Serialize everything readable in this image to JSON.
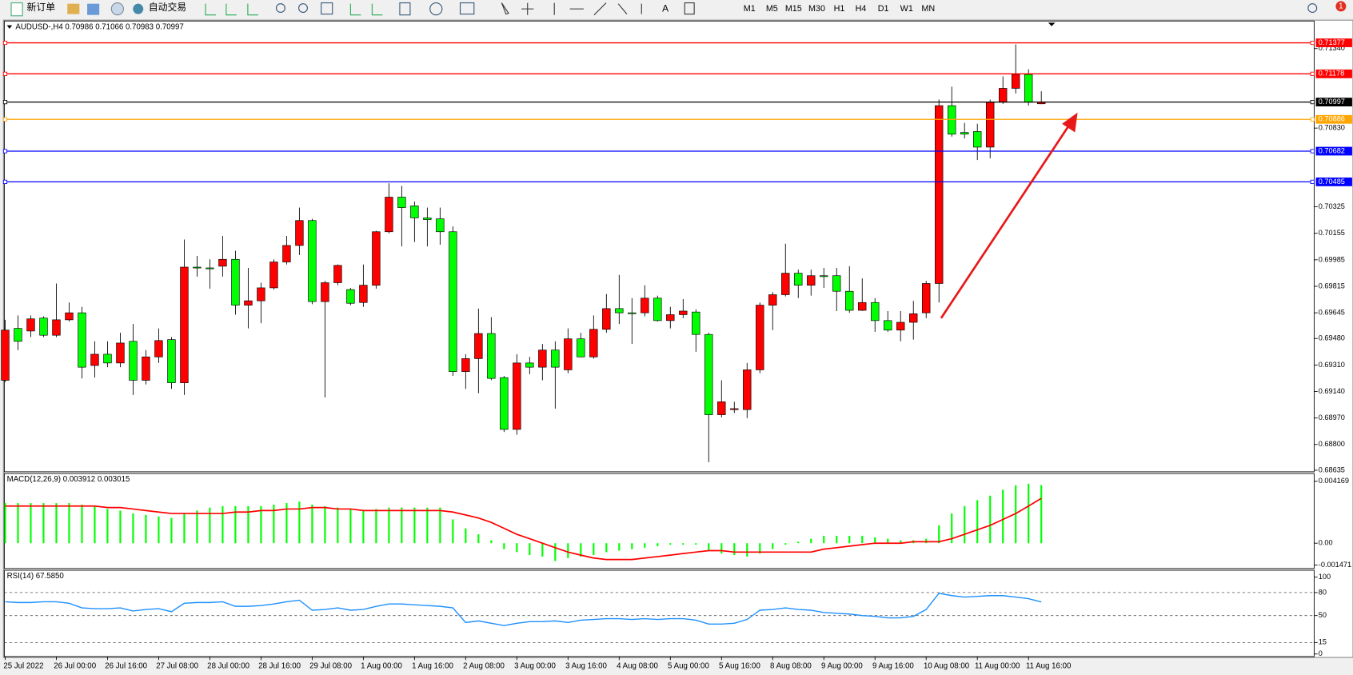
{
  "toolbar": {
    "new_order": "新订单",
    "auto_trading": "自动交易",
    "timeframes": [
      "M1",
      "M5",
      "M15",
      "M30",
      "H1",
      "H4",
      "D1",
      "W1",
      "MN"
    ],
    "badge": "1"
  },
  "chart_data": [
    {
      "type": "candlestick",
      "title": "AUDUSD-,H4  0.70986 0.71066 0.70983 0.70997",
      "categories": [
        "25 Jul 2022",
        null,
        null,
        null,
        "26 Jul 00:00",
        null,
        null,
        null,
        "26 Jul 16:00",
        null,
        null,
        null,
        "27 Jul 08:00",
        null,
        null,
        null,
        "28 Jul 00:00",
        null,
        null,
        null,
        "28 Jul 16:00",
        null,
        null,
        null,
        "29 Jul 08:00",
        null,
        null,
        null,
        "1 Aug 00:00",
        null,
        null,
        null,
        "1 Aug 16:00",
        null,
        null,
        null,
        "2 Aug 08:00",
        null,
        null,
        null,
        "3 Aug 00:00",
        null,
        null,
        null,
        "3 Aug 16:00",
        null,
        null,
        null,
        "4 Aug 08:00",
        null,
        null,
        null,
        "5 Aug 00:00",
        null,
        null,
        null,
        "5 Aug 16:00",
        null,
        null,
        null,
        "8 Aug 08:00",
        null,
        null,
        null,
        "9 Aug 00:00",
        null,
        null,
        null,
        "9 Aug 16:00",
        null,
        null,
        null,
        "10 Aug 08:00",
        null,
        null,
        null,
        "11 Aug 00:00",
        null,
        null,
        null,
        "11 Aug 16:00",
        null
      ],
      "open": [
        0.69212,
        0.69545,
        0.69528,
        0.69611,
        0.69501,
        0.696,
        0.69645,
        0.69307,
        0.69379,
        0.69323,
        0.69462,
        0.69212,
        0.69362,
        0.69473,
        0.69196,
        0.69938,
        0.69933,
        0.69944,
        0.69988,
        0.69694,
        0.69722,
        0.69805,
        0.69971,
        0.70077,
        0.70237,
        0.69717,
        0.69838,
        0.69794,
        0.69711,
        0.69822,
        0.70165,
        0.70387,
        0.70331,
        0.70254,
        0.70248,
        0.70165,
        0.69268,
        0.69351,
        0.69512,
        0.69229,
        0.68897,
        0.69323,
        0.69296,
        0.69406,
        0.69279,
        0.69478,
        0.69362,
        0.69539,
        0.69672,
        0.69645,
        0.69645,
        0.69739,
        0.69595,
        0.69633,
        0.6965,
        0.69506,
        0.68991,
        0.69024,
        0.69024,
        0.69279,
        0.69694,
        0.69761,
        0.69899,
        0.69822,
        0.69883,
        0.69883,
        0.69783,
        0.69661,
        0.69711,
        0.69595,
        0.69534,
        0.69584,
        0.69645,
        0.69833,
        0.70974,
        0.70802,
        0.70808,
        0.70708,
        0.70996,
        0.71085,
        0.71174,
        0.70986
      ],
      "high": [
        0.696,
        0.69628,
        0.69628,
        0.69622,
        0.69833,
        0.69711,
        0.69683,
        0.69462,
        0.69462,
        0.69517,
        0.69573,
        0.69406,
        0.69545,
        0.69489,
        0.70115,
        0.7001,
        0.69988,
        0.70138,
        0.70043,
        0.69933,
        0.69838,
        0.69988,
        0.70138,
        0.7032,
        0.70248,
        0.6985,
        0.69955,
        0.69805,
        0.69955,
        0.70171,
        0.70476,
        0.70459,
        0.70359,
        0.7032,
        0.7032,
        0.70199,
        0.69379,
        0.69672,
        0.69617,
        0.6924,
        0.69379,
        0.69362,
        0.69445,
        0.69462,
        0.69545,
        0.69517,
        0.69628,
        0.69766,
        0.69888,
        0.69739,
        0.69822,
        0.69755,
        0.69683,
        0.69733,
        0.69667,
        0.69517,
        0.69212,
        0.69074,
        0.69323,
        0.69711,
        0.69778,
        0.70088,
        0.69922,
        0.69922,
        0.69933,
        0.69933,
        0.69944,
        0.69866,
        0.69739,
        0.69656,
        0.69656,
        0.69722,
        0.6985,
        0.71013,
        0.71096,
        0.70863,
        0.70858,
        0.71013,
        0.71162,
        0.71367,
        0.71207,
        0.71066
      ],
      "low": [
        0.69201,
        0.69406,
        0.69489,
        0.69489,
        0.69489,
        0.69589,
        0.69224,
        0.69229,
        0.69296,
        0.69296,
        0.69118,
        0.69185,
        0.69323,
        0.69157,
        0.69118,
        0.69877,
        0.698,
        0.69877,
        0.69633,
        0.69545,
        0.69578,
        0.69794,
        0.69955,
        0.70016,
        0.697,
        0.69102,
        0.69822,
        0.69694,
        0.69683,
        0.698,
        0.70154,
        0.70071,
        0.70099,
        0.70071,
        0.70082,
        0.6924,
        0.69157,
        0.69129,
        0.69212,
        0.6888,
        0.68863,
        0.69251,
        0.69212,
        0.6903,
        0.69257,
        0.69362,
        0.69351,
        0.69517,
        0.69573,
        0.69445,
        0.69622,
        0.69589,
        0.69545,
        0.69611,
        0.69395,
        0.68686,
        0.68974,
        0.69002,
        0.68969,
        0.69257,
        0.69534,
        0.6975,
        0.69739,
        0.69755,
        0.69805,
        0.69656,
        0.69645,
        0.69656,
        0.69523,
        0.69523,
        0.69462,
        0.69473,
        0.69611,
        0.69711,
        0.70775,
        0.70764,
        0.70625,
        0.70636,
        0.70985,
        0.71052,
        0.70974,
        0.70983
      ],
      "close": [
        0.69534,
        0.69462,
        0.69606,
        0.69501,
        0.696,
        0.69645,
        0.69296,
        0.69379,
        0.69323,
        0.69451,
        0.69212,
        0.69362,
        0.69467,
        0.69196,
        0.69938,
        0.69933,
        0.69927,
        0.69988,
        0.69694,
        0.69722,
        0.69805,
        0.69971,
        0.70077,
        0.70237,
        0.69717,
        0.69838,
        0.69949,
        0.69706,
        0.69822,
        0.70165,
        0.70387,
        0.7032,
        0.70254,
        0.70243,
        0.70165,
        0.69268,
        0.69351,
        0.69512,
        0.69224,
        0.68897,
        0.69323,
        0.69296,
        0.69406,
        0.69296,
        0.69478,
        0.69362,
        0.69539,
        0.69672,
        0.69645,
        0.69639,
        0.69739,
        0.69595,
        0.69633,
        0.69656,
        0.69506,
        0.68991,
        0.69074,
        0.6903,
        0.69279,
        0.69694,
        0.69761,
        0.69899,
        0.69822,
        0.69883,
        0.69877,
        0.69783,
        0.69661,
        0.69711,
        0.69595,
        0.69534,
        0.69584,
        0.69639,
        0.69833,
        0.70974,
        0.70791,
        0.70791,
        0.70708,
        0.70996,
        0.71085,
        0.71174,
        0.70996,
        0.70997
      ],
      "up_color": "#ff0000",
      "down_color": "#00ff00",
      "ylim": [
        0.68625,
        0.71517
      ],
      "yticks": [
        {
          "value": 0.7134,
          "label": "0.71340"
        },
        {
          "value": 0.7083,
          "label": "0.70830"
        },
        0.70325,
        0.70155,
        0.69985,
        0.69815,
        0.69645,
        {
          "value": 0.6948,
          "label": "0.69480"
        },
        {
          "value": 0.6931,
          "label": "0.69310"
        },
        {
          "value": 0.6914,
          "label": "0.69140"
        },
        {
          "value": 0.6897,
          "label": "0.68970"
        },
        {
          "value": 0.688,
          "label": "0.68800"
        },
        0.68635
      ],
      "levels": [
        {
          "value": 0.71377,
          "color": "#ff0000"
        },
        {
          "value": 0.71178,
          "color": "#ff0000"
        },
        {
          "value": 0.70997,
          "color": "#000000"
        },
        {
          "value": 0.70886,
          "color": "#ffa500"
        },
        {
          "value": 0.70682,
          "color": "#0000ff"
        },
        {
          "value": 0.70485,
          "color": "#0000ff"
        }
      ]
    },
    {
      "type": "macd",
      "title": "MACD(12,26,9) 0.003912 0.003015",
      "series": [
        {
          "color": "#00ff00",
          "values": [
            0.0027,
            0.0027,
            0.0027,
            0.0027,
            0.0027,
            0.0027,
            0.0026,
            0.0025,
            0.0023,
            0.0022,
            0.002,
            0.0019,
            0.0018,
            0.0017,
            0.002,
            0.0022,
            0.0024,
            0.0025,
            0.0025,
            0.0025,
            0.0025,
            0.0026,
            0.0027,
            0.0028,
            0.0026,
            0.0025,
            0.0024,
            0.0023,
            0.0022,
            0.0023,
            0.0024,
            0.0024,
            0.0024,
            0.0024,
            0.0024,
            0.0016,
            0.001,
            0.0006,
            0.0002,
            -0.0004,
            -0.0006,
            -0.0008,
            -0.0009,
            -0.0012,
            -0.001,
            -0.0009,
            -0.0008,
            -0.0006,
            -0.0005,
            -0.0004,
            -0.0003,
            -0.0002,
            -0.0001,
            -0.0001,
            -0.0001,
            -0.0005,
            -0.0007,
            -0.0008,
            -0.0009,
            -0.0007,
            -0.0004,
            -0.0001,
            0.0001,
            0.0003,
            0.0005,
            0.0005,
            0.0005,
            0.0005,
            0.0004,
            0.0003,
            0.0002,
            0.0002,
            0.0003,
            0.0012,
            0.002,
            0.0025,
            0.0029,
            0.0032,
            0.0036,
            0.0039,
            0.004,
            0.003912
          ]
        },
        {
          "color": "#ff0000",
          "values": [
            0.0025,
            0.0025,
            0.0025,
            0.0025,
            0.0025,
            0.0025,
            0.0025,
            0.0025,
            0.0024,
            0.0024,
            0.0023,
            0.0022,
            0.0021,
            0.002,
            0.002,
            0.002,
            0.002,
            0.002,
            0.0021,
            0.0021,
            0.0022,
            0.0022,
            0.0023,
            0.0023,
            0.0024,
            0.0024,
            0.0023,
            0.0023,
            0.0022,
            0.0022,
            0.0022,
            0.0022,
            0.0022,
            0.0022,
            0.0022,
            0.0021,
            0.0019,
            0.0017,
            0.0014,
            0.001,
            0.0006,
            0.0003,
            0.0,
            -0.0003,
            -0.0006,
            -0.0008,
            -0.001,
            -0.0011,
            -0.0011,
            -0.0011,
            -0.001,
            -0.0009,
            -0.0008,
            -0.0007,
            -0.0006,
            -0.0005,
            -0.0005,
            -0.0006,
            -0.0006,
            -0.0006,
            -0.0006,
            -0.0006,
            -0.0006,
            -0.0006,
            -0.0004,
            -0.0003,
            -0.0002,
            -0.0001,
            0.0,
            0.0,
            0.0,
            0.0001,
            0.0001,
            0.0001,
            0.0003,
            0.0006,
            0.0009,
            0.0012,
            0.0016,
            0.002,
            0.0025,
            0.003015
          ]
        }
      ],
      "ylim": [
        -0.001471,
        0.004169
      ],
      "yticks": [
        0.004169,
        {
          "value": 0,
          "label": "0.00"
        },
        -0.001471
      ]
    },
    {
      "type": "line",
      "title": "RSI(14) 67.5850",
      "series": [
        {
          "color": "#1e90ff",
          "values": [
            68,
            67,
            67,
            68,
            68,
            66,
            60,
            59,
            59,
            60,
            56,
            58,
            59,
            55,
            66,
            67,
            67,
            68,
            62,
            62,
            63,
            65,
            68,
            70,
            57,
            58,
            60,
            57,
            58,
            62,
            65,
            65,
            64,
            63,
            62,
            60,
            41,
            43,
            40,
            37,
            40,
            42,
            42,
            43,
            41,
            44,
            45,
            46,
            46,
            45,
            46,
            45,
            46,
            46,
            44,
            39,
            39,
            40,
            45,
            57,
            58,
            60,
            58,
            57,
            54,
            53,
            52,
            50,
            49,
            47,
            47,
            49,
            58,
            79,
            76,
            74,
            75,
            76,
            76,
            74,
            72,
            67.585
          ]
        }
      ],
      "ylim": [
        0,
        100
      ],
      "yticks": [
        100,
        80,
        50,
        15,
        0
      ],
      "grid": true
    }
  ]
}
